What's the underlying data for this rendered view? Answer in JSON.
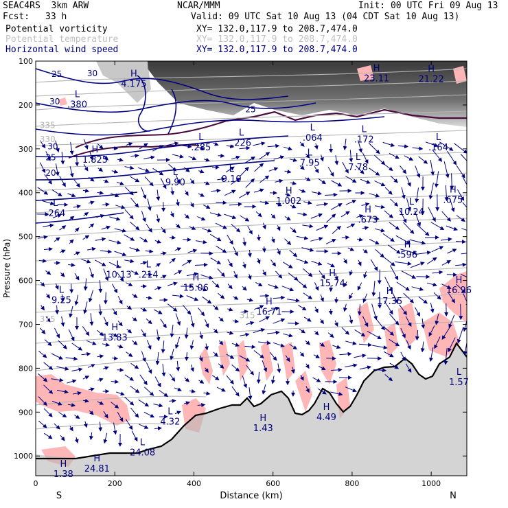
{
  "header": {
    "model": "SEAC4RS  3km ARW",
    "center": "NCAR/MMM",
    "init": "Init: 00 UTC Fri 09 Aug 13",
    "fcst_label": "Fcst:",
    "fcst_value": "33 h",
    "valid": "Valid: 09 UTC Sat 10 Aug 13 (04 CDT Sat 10 Aug 13)",
    "fields": [
      {
        "name": "Potential vorticity",
        "xy": "XY= 132.0,117.9 to 208.7,474.0",
        "color": "#000000"
      },
      {
        "name": "Potential temperature",
        "xy": "XY= 132.0,117.9 to 208.7,474.0",
        "color": "#c0c0c0"
      },
      {
        "name": "Horizontal wind speed",
        "xy": "XY= 132.0,117.9 to 208.7,474.0",
        "color": "#000080"
      }
    ]
  },
  "chart_data": {
    "type": "cross-section",
    "xlabel": "Distance (km)",
    "ylabel": "Pressure (hPa)",
    "xlim": [
      0,
      1090
    ],
    "ylim": [
      1045,
      100
    ],
    "y_scale": "linear, inverted",
    "x_ticks": [
      0,
      200,
      400,
      600,
      800,
      1000
    ],
    "y_ticks": [
      100,
      200,
      300,
      400,
      500,
      600,
      700,
      800,
      900,
      1000
    ],
    "endpoints": {
      "left": "S",
      "right": "N"
    },
    "colors": {
      "wind": "#000080",
      "theta": "#b4b4b4",
      "pv_fill": "#ffb6b6",
      "pv_line": "#4b0a3c",
      "terrain": "#000000"
    },
    "theta_labels": [
      {
        "x": 10,
        "y": 246,
        "text": "335"
      },
      {
        "x": 10,
        "y": 278,
        "text": "330"
      },
      {
        "x": 10,
        "y": 688,
        "text": "315"
      },
      {
        "x": 515,
        "y": 680,
        "text": "315"
      }
    ],
    "wind_labels": [
      {
        "x": 40,
        "y": 130,
        "text": "25"
      },
      {
        "x": 130,
        "y": 128,
        "text": "30"
      },
      {
        "x": 35,
        "y": 192,
        "text": "30"
      },
      {
        "x": 530,
        "y": 210,
        "text": "25"
      },
      {
        "x": 30,
        "y": 295,
        "text": "30"
      },
      {
        "x": 25,
        "y": 320,
        "text": "25"
      },
      {
        "x": 25,
        "y": 355,
        "text": "20"
      }
    ],
    "hl_markers": [
      {
        "x": 105,
        "y": 182,
        "kind": "L",
        "value": ".380"
      },
      {
        "x": 248,
        "y": 135,
        "kind": "H",
        "value": "4.175"
      },
      {
        "x": 862,
        "y": 123,
        "kind": "H",
        "value": "23.11"
      },
      {
        "x": 1000,
        "y": 124,
        "kind": "H",
        "value": "21.22"
      },
      {
        "x": 150,
        "y": 308,
        "kind": "H",
        "value": "1.825"
      },
      {
        "x": 418,
        "y": 280,
        "kind": "L",
        "value": ".285"
      },
      {
        "x": 520,
        "y": 270,
        "kind": "L",
        "value": ".226"
      },
      {
        "x": 700,
        "y": 258,
        "kind": "L",
        "value": ".064"
      },
      {
        "x": 830,
        "y": 262,
        "kind": "L",
        "value": ".172"
      },
      {
        "x": 1018,
        "y": 280,
        "kind": "L",
        "value": ".164"
      },
      {
        "x": 353,
        "y": 360,
        "kind": "L",
        "value": "9.90"
      },
      {
        "x": 495,
        "y": 352,
        "kind": "L",
        "value": "9.10"
      },
      {
        "x": 693,
        "y": 315,
        "kind": "L",
        "value": "7.95"
      },
      {
        "x": 815,
        "y": 325,
        "kind": "L",
        "value": "7.78"
      },
      {
        "x": 1055,
        "y": 400,
        "kind": "H",
        "value": ".675"
      },
      {
        "x": 640,
        "y": 402,
        "kind": "H",
        "value": "1.002"
      },
      {
        "x": 950,
        "y": 427,
        "kind": "L",
        "value": "10.24"
      },
      {
        "x": 50,
        "y": 430,
        "kind": "L",
        "value": ".264"
      },
      {
        "x": 840,
        "y": 445,
        "kind": "H",
        "value": ".673"
      },
      {
        "x": 940,
        "y": 525,
        "kind": "H",
        "value": ".596"
      },
      {
        "x": 210,
        "y": 570,
        "kind": "L",
        "value": "10.13"
      },
      {
        "x": 285,
        "y": 570,
        "kind": "L",
        "value": ".214"
      },
      {
        "x": 405,
        "y": 600,
        "kind": "H",
        "value": "15.06"
      },
      {
        "x": 750,
        "y": 590,
        "kind": "H",
        "value": "15.74"
      },
      {
        "x": 1070,
        "y": 605,
        "kind": "H",
        "value": "16.96"
      },
      {
        "x": 590,
        "y": 655,
        "kind": "H",
        "value": "16.71"
      },
      {
        "x": 895,
        "y": 630,
        "kind": "H",
        "value": "17.35"
      },
      {
        "x": 65,
        "y": 628,
        "kind": "L",
        "value": "9.25"
      },
      {
        "x": 200,
        "y": 713,
        "kind": "H",
        "value": "13.83"
      },
      {
        "x": 1070,
        "y": 815,
        "kind": "L",
        "value": "1.57"
      },
      {
        "x": 340,
        "y": 905,
        "kind": "L",
        "value": "4.32"
      },
      {
        "x": 575,
        "y": 920,
        "kind": "H",
        "value": "1.43"
      },
      {
        "x": 735,
        "y": 895,
        "kind": "H",
        "value": "4.49"
      },
      {
        "x": 270,
        "y": 975,
        "kind": "L",
        "value": "24.08"
      },
      {
        "x": 155,
        "y": 1012,
        "kind": "H",
        "value": "24.81"
      },
      {
        "x": 70,
        "y": 1025,
        "kind": "H",
        "value": "1.38"
      }
    ]
  }
}
